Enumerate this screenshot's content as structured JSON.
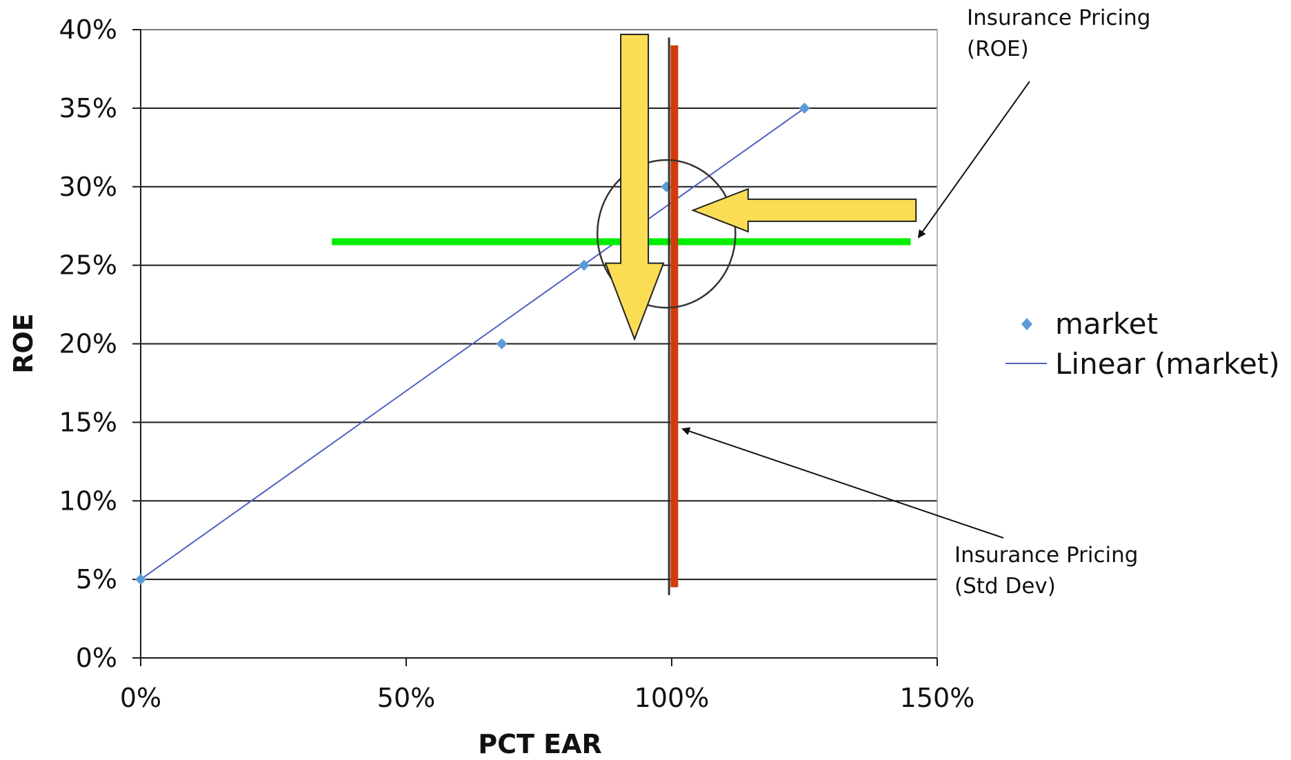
{
  "chart_data": {
    "type": "scatter",
    "xlabel": "PCT EAR",
    "ylabel": "ROE",
    "xlim": [
      0,
      150
    ],
    "ylim": [
      0,
      40
    ],
    "x_ticks": [
      0,
      50,
      100,
      150
    ],
    "y_ticks": [
      0,
      5,
      10,
      15,
      20,
      25,
      30,
      35,
      40
    ],
    "x_tick_labels": [
      "0%",
      "50%",
      "100%",
      "150%"
    ],
    "y_tick_labels": [
      "0%",
      "5%",
      "10%",
      "15%",
      "20%",
      "25%",
      "30%",
      "35%",
      "40%"
    ],
    "grid": "horizontal",
    "legend_position": "right",
    "series": [
      {
        "name": "market",
        "kind": "points",
        "color": "#5b9bd5",
        "x": [
          0,
          68,
          83.5,
          99,
          125
        ],
        "y": [
          5,
          20,
          25,
          30,
          35
        ]
      },
      {
        "name": "Linear (market)",
        "kind": "trendline",
        "color": "#5060c0",
        "x": [
          0,
          125
        ],
        "y": [
          5,
          35
        ]
      }
    ],
    "reference_lines": {
      "roe_level": {
        "y": 26.5,
        "x_from": 36,
        "x_to": 145,
        "color": "#00ee00"
      },
      "std_dev_level": {
        "x": 100.5,
        "y_from": 4.5,
        "y_to": 39,
        "color": "#d23a0c"
      },
      "thin_vertical": {
        "x": 99.5,
        "y_from": 4,
        "y_to": 39.5,
        "color": "#333333"
      }
    },
    "highlight_circle": {
      "cx": 99,
      "cy": 27,
      "rx": 13,
      "ry": 4.7,
      "color": "#333333"
    },
    "block_arrows": {
      "down": {
        "x": 93,
        "y_from": 39.7,
        "y_to": 20.3,
        "color": "#fadd55"
      },
      "left": {
        "y": 28.5,
        "x_from": 146,
        "x_to": 104,
        "color": "#fadd55"
      }
    },
    "annotations": [
      {
        "lines": [
          "Insurance Pricing",
          "(ROE)"
        ],
        "points_to": {
          "x": 145,
          "y": 26.5
        }
      },
      {
        "lines": [
          "Insurance Pricing",
          "(Std Dev)"
        ],
        "points_to": {
          "x": 102,
          "y": 14.7
        }
      }
    ]
  }
}
